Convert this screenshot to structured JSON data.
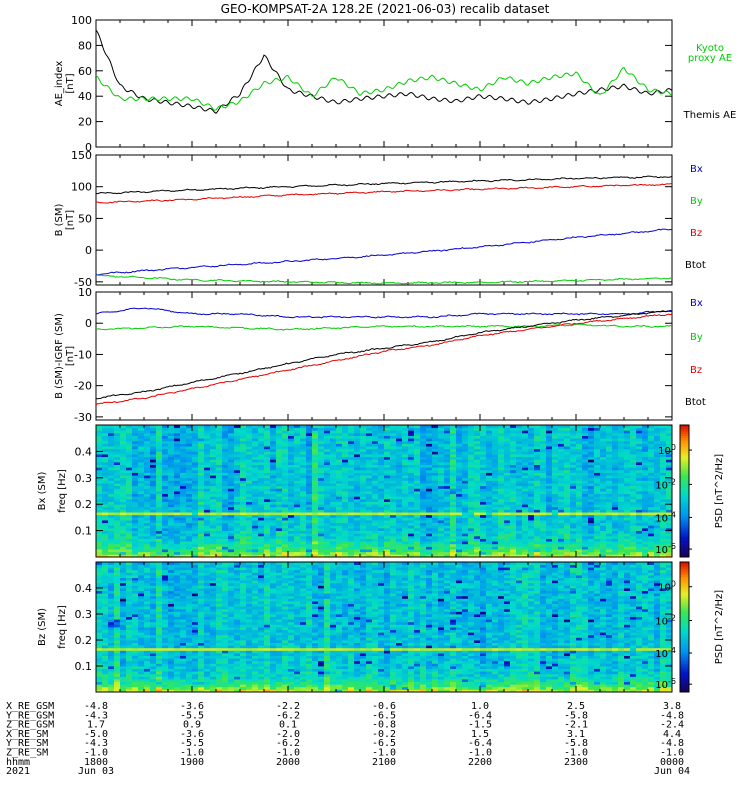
{
  "title": "GEO-KOMPSAT-2A 128.2E (2021-06-03) recalib dataset",
  "colors": {
    "black": "#000000",
    "red": "#e00000",
    "green": "#00cc00",
    "blue": "#0000cc",
    "kyoto": "#00cc00"
  },
  "chart_data": [
    {
      "type": "line",
      "ylabel": [
        "AE_index",
        "[nT]"
      ],
      "ylim": [
        0,
        100
      ],
      "yticks": [
        "0",
        "20",
        "40",
        "60",
        "80",
        "100"
      ],
      "legend": [
        {
          "label": "Kyoto",
          "color": "#00cc00"
        },
        {
          "label": "proxy AE",
          "color": "#00cc00"
        },
        {
          "label": "Themis AE",
          "color": "#000000"
        }
      ],
      "x_hours": [
        0,
        0.25,
        0.5,
        0.75,
        1.0,
        1.25,
        1.5,
        1.75,
        2.0,
        2.25,
        2.5,
        2.75,
        3.0,
        3.25,
        3.5,
        3.75,
        4.0,
        4.25,
        4.5,
        4.75,
        5.0,
        5.25,
        5.5,
        5.75,
        6.0
      ],
      "series": [
        {
          "name": "Themis AE",
          "color": "#000000",
          "values": [
            92,
            48,
            38,
            35,
            32,
            28,
            42,
            72,
            45,
            40,
            35,
            38,
            40,
            42,
            38,
            36,
            40,
            38,
            35,
            38,
            42,
            45,
            48,
            42,
            45
          ]
        },
        {
          "name": "Kyoto",
          "color": "#00cc00",
          "values": [
            55,
            38,
            38,
            38,
            38,
            30,
            36,
            50,
            55,
            40,
            55,
            42,
            45,
            52,
            55,
            50,
            45,
            55,
            50,
            55,
            58,
            40,
            62,
            45,
            42
          ]
        }
      ]
    },
    {
      "type": "line",
      "ylabel": [
        "B (SM)",
        "[nT]"
      ],
      "ylim": [
        -55,
        150
      ],
      "yticks": [
        "-50",
        "0",
        "50",
        "100",
        "150"
      ],
      "legend": [
        {
          "label": "Bx",
          "color": "#0000cc"
        },
        {
          "label": "By",
          "color": "#00cc00"
        },
        {
          "label": "Bz",
          "color": "#e00000"
        },
        {
          "label": "Btot",
          "color": "#000000"
        }
      ],
      "x_hours": [
        0,
        1,
        2,
        3,
        4,
        5,
        6
      ],
      "series": [
        {
          "name": "Btot",
          "color": "#000000",
          "values": [
            89,
            95,
            100,
            105,
            109,
            113,
            116
          ]
        },
        {
          "name": "Bz",
          "color": "#e00000",
          "values": [
            75,
            80,
            87,
            92,
            96,
            100,
            104
          ]
        },
        {
          "name": "Bx",
          "color": "#0000cc",
          "values": [
            -38,
            -27,
            -18,
            -8,
            5,
            20,
            33
          ]
        },
        {
          "name": "By",
          "color": "#00cc00",
          "values": [
            -40,
            -47,
            -50,
            -52,
            -51,
            -48,
            -44
          ]
        }
      ]
    },
    {
      "type": "line",
      "ylabel": [
        "B (SM)-IGRF (SM)",
        "[nT]"
      ],
      "ylim": [
        -31,
        10
      ],
      "yticks": [
        "-30",
        "-20",
        "-10",
        "0",
        "10"
      ],
      "legend": [
        {
          "label": "Bx",
          "color": "#0000cc"
        },
        {
          "label": "By",
          "color": "#00cc00"
        },
        {
          "label": "Bz",
          "color": "#e00000"
        },
        {
          "label": "Btot",
          "color": "#000000"
        }
      ],
      "x_hours": [
        0,
        0.5,
        1,
        1.5,
        2,
        2.5,
        3,
        3.5,
        4,
        4.5,
        5,
        5.5,
        6
      ],
      "series": [
        {
          "name": "Bx",
          "color": "#0000cc",
          "values": [
            3,
            5,
            3,
            3,
            2,
            2,
            2,
            2,
            3,
            3,
            3,
            3,
            4
          ]
        },
        {
          "name": "By",
          "color": "#00cc00",
          "values": [
            -2,
            -1.5,
            -1,
            -1.5,
            -2,
            -1.5,
            -1,
            -1,
            -1,
            -1,
            -0.5,
            -1,
            -1
          ]
        },
        {
          "name": "Btot",
          "color": "#000000",
          "values": [
            -24,
            -22,
            -19,
            -16,
            -13,
            -10,
            -8,
            -6,
            -3,
            -1,
            1,
            2.5,
            4
          ]
        },
        {
          "name": "Bz",
          "color": "#e00000",
          "values": [
            -26,
            -24,
            -21,
            -18,
            -15,
            -12,
            -9,
            -7,
            -4,
            -2,
            0,
            1.5,
            3
          ]
        }
      ]
    },
    {
      "type": "heatmap",
      "ylabel": [
        "Bx (SM)",
        "freq [Hz]"
      ],
      "ylim": [
        0,
        0.5
      ],
      "yticks": [
        "0.1",
        "0.2",
        "0.3",
        "0.4"
      ],
      "colorbar_label": "PSD [nT^2/Hz]",
      "colorbar_ticks": [
        "10^0",
        "10^-2",
        "10^-4",
        "10^-6"
      ]
    },
    {
      "type": "heatmap",
      "ylabel": [
        "Bz (SM)",
        "freq [Hz]"
      ],
      "ylim": [
        0,
        0.5
      ],
      "yticks": [
        "0.1",
        "0.2",
        "0.3",
        "0.4"
      ],
      "colorbar_label": "PSD [nT^2/Hz]",
      "colorbar_ticks": [
        "10^0",
        "10^-2",
        "10^-4",
        "10^-6"
      ]
    }
  ],
  "ephemeris": {
    "rows": [
      {
        "label": "X_RE_GSM",
        "values": [
          "-4.8",
          "-3.6",
          "-2.2",
          "-0.6",
          "1.0",
          "2.5",
          "3.8"
        ]
      },
      {
        "label": "Y_RE_GSM",
        "values": [
          "-4.3",
          "-5.5",
          "-6.2",
          "-6.5",
          "-6.4",
          "-5.8",
          "-4.8"
        ]
      },
      {
        "label": "Z_RE_GSM",
        "values": [
          "1.7",
          "0.9",
          "0.1",
          "-0.8",
          "-1.5",
          "-2.1",
          "-2.4"
        ]
      },
      {
        "label": "X_RE_SM",
        "values": [
          "-5.0",
          "-3.6",
          "-2.0",
          "-0.2",
          "1.5",
          "3.1",
          "4.4"
        ]
      },
      {
        "label": "Y_RE_SM",
        "values": [
          "-4.3",
          "-5.5",
          "-6.2",
          "-6.5",
          "-6.4",
          "-5.8",
          "-4.8"
        ]
      },
      {
        "label": "Z_RE_SM",
        "values": [
          "-1.0",
          "-1.0",
          "-1.0",
          "-1.0",
          "-1.0",
          "-1.0",
          "-1.0"
        ]
      },
      {
        "label": "hhmm",
        "values": [
          "1800",
          "1900",
          "2000",
          "2100",
          "2200",
          "2300",
          "0000"
        ]
      },
      {
        "label": "2021",
        "values": [
          "Jun 03",
          "",
          "",
          "",
          "",
          "",
          "Jun 04"
        ]
      }
    ]
  }
}
